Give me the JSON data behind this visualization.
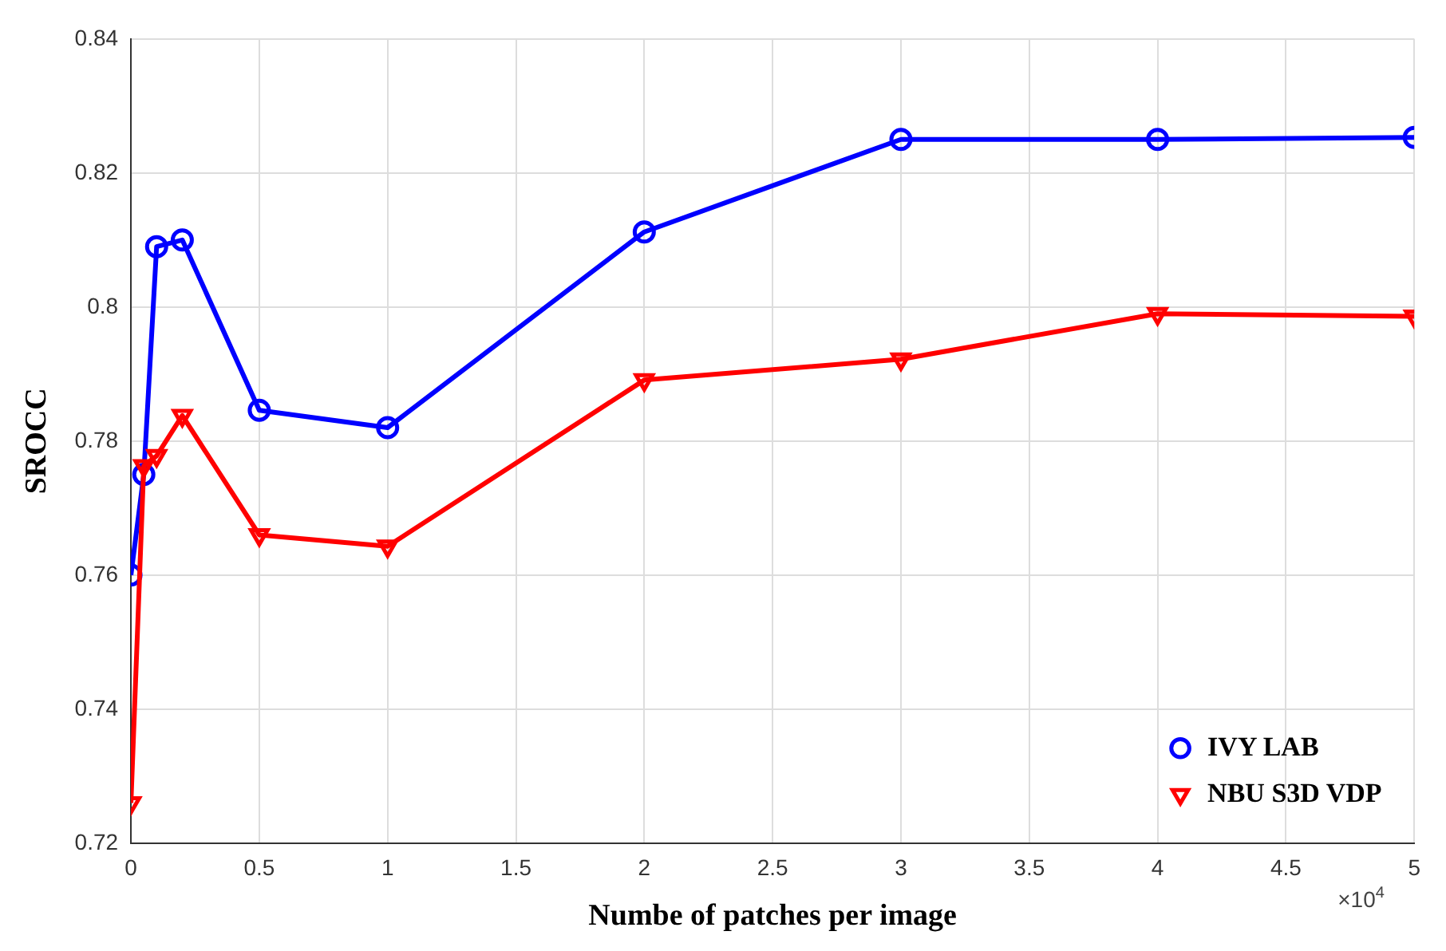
{
  "chart_data": {
    "type": "line",
    "xlabel": "Numbe of patches per image",
    "ylabel": "SROCC",
    "annotations": [
      "×10$^{4}$"
    ],
    "x": [
      0,
      0.05,
      0.1,
      0.2,
      0.5,
      1,
      2,
      3,
      4,
      5
    ],
    "series": [
      {
        "name": "IVY LAB",
        "color": "#0000ff",
        "marker": "circle",
        "values": [
          0.76,
          0.775,
          0.809,
          0.81,
          0.7846,
          0.782,
          0.8112,
          0.825,
          0.825,
          0.8253
        ]
      },
      {
        "name": "NBU S3D VDP",
        "color": "#ff0000",
        "marker": "triangle",
        "values": [
          0.726,
          0.7763,
          0.7778,
          0.7838,
          0.766,
          0.7643,
          0.7891,
          0.7922,
          0.799,
          0.7986
        ]
      }
    ],
    "xlim": [
      0,
      5
    ],
    "xticks": [
      0,
      0.5,
      1,
      1.5,
      2,
      2.5,
      3,
      3.5,
      4,
      4.5,
      5
    ],
    "ylim": [
      0.72,
      0.84
    ],
    "yticks": [
      0.72,
      0.74,
      0.76,
      0.78,
      0.8,
      0.82,
      0.84
    ],
    "grid": true,
    "legend": "bottom right",
    "line_style": "solid"
  }
}
